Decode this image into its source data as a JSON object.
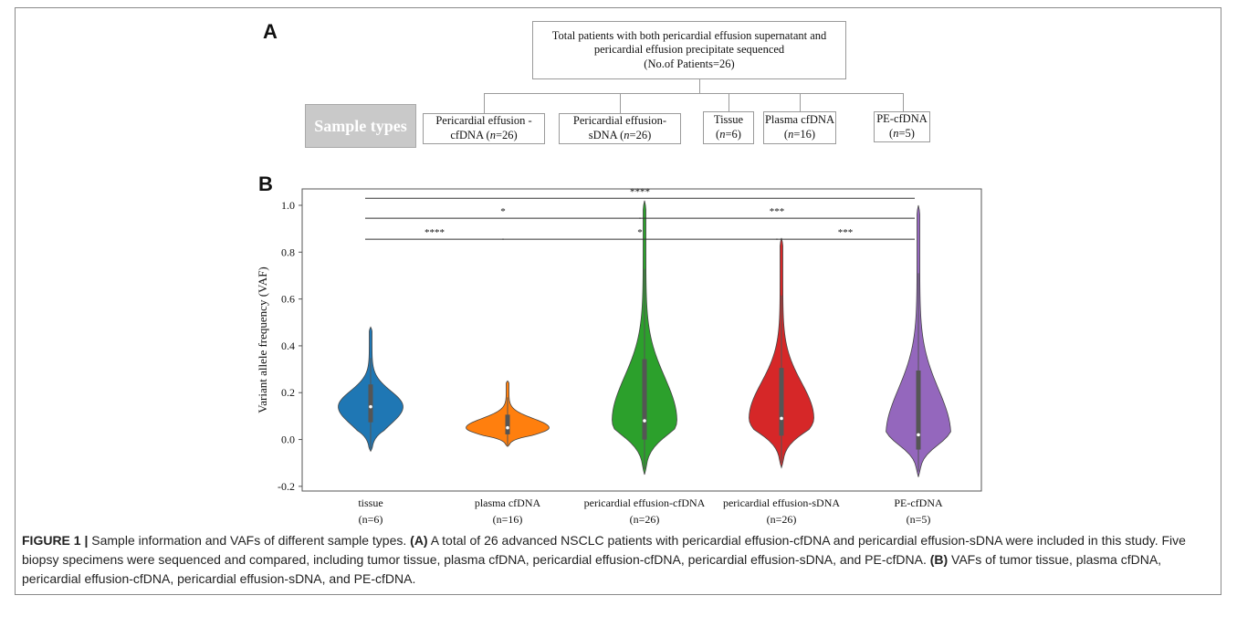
{
  "panel_a": {
    "label": "A",
    "top_box": {
      "line1": "Total patients with both pericardial effusion supernatant and",
      "line2": "pericardial effusion precipitate sequenced",
      "line3": "(No.of Patients=26)"
    },
    "sample_types_label": "Sample types",
    "boxes": [
      {
        "line1": "Pericardial  effusion -",
        "line2a": "cfDNA (",
        "n": "n",
        "line2b": "=26)"
      },
      {
        "line1": "Pericardial effusion-",
        "line2a": "sDNA (",
        "n": "n",
        "line2b": "=26)"
      },
      {
        "line1": "Tissue",
        "line2a": "(",
        "n": "n",
        "line2b": "=6)"
      },
      {
        "line1": "Plasma cfDNA",
        "line2a": "(",
        "n": "n",
        "line2b": "=16)"
      },
      {
        "line1": "PE-cfDNA",
        "line2a": "(",
        "n": "n",
        "line2b": "=5)"
      }
    ]
  },
  "panel_b": {
    "label": "B"
  },
  "chart_data": {
    "type": "violin",
    "ylabel": "Variant allele frequency (VAF)",
    "ylim": [
      -0.22,
      1.07
    ],
    "yticks": [
      "-0.2",
      "0.0",
      "0.2",
      "0.4",
      "0.6",
      "0.8",
      "1.0"
    ],
    "categories": [
      {
        "name": "tissue",
        "n": "(n=6)",
        "color": "#1f77b4",
        "min": -0.05,
        "max": 0.48,
        "median": 0.14
      },
      {
        "name": "plasma cfDNA",
        "n": "(n=16)",
        "color": "#ff7f0e",
        "min": -0.03,
        "max": 0.25,
        "median": 0.05
      },
      {
        "name": "pericardial effusion-cfDNA",
        "n": "(n=26)",
        "color": "#2ca02c",
        "min": -0.15,
        "max": 1.02,
        "median": 0.08
      },
      {
        "name": "pericardial effusion-sDNA",
        "n": "(n=26)",
        "color": "#d62728",
        "min": -0.12,
        "max": 0.86,
        "median": 0.09
      },
      {
        "name": "PE-cfDNA",
        "n": "(n=5)",
        "color": "#9467bd",
        "min": -0.16,
        "max": 1.0,
        "median": 0.02
      }
    ],
    "significance": [
      {
        "from": 0,
        "to": 4,
        "y": 1.03,
        "label": "****"
      },
      {
        "from": 0,
        "to": 2,
        "y": 0.945,
        "label": "*"
      },
      {
        "from": 2,
        "to": 4,
        "y": 0.945,
        "label": "***"
      },
      {
        "from": 0,
        "to": 1,
        "y": 0.855,
        "label": "****"
      },
      {
        "from": 1,
        "to": 3,
        "y": 0.855,
        "label": "*"
      },
      {
        "from": 3,
        "to": 4,
        "y": 0.855,
        "label": "***"
      }
    ]
  },
  "caption": {
    "figure_label": "FIGURE 1 |",
    "text1": " Sample information and VAFs of different sample types. ",
    "a_ref": "(A)",
    "text2": " A total of 26 advanced NSCLC patients with pericardial effusion-cfDNA and pericardial effusion-sDNA were included in this study. Five biopsy specimens were sequenced and compared, including tumor tissue, plasma cfDNA, pericardial effusion-cfDNA, pericardial effusion-sDNA, and PE-cfDNA. ",
    "b_ref": "(B)",
    "text3": " VAFs of tumor tissue, plasma cfDNA, pericardial effusion-cfDNA, pericardial effusion-sDNA, and PE-cfDNA."
  }
}
